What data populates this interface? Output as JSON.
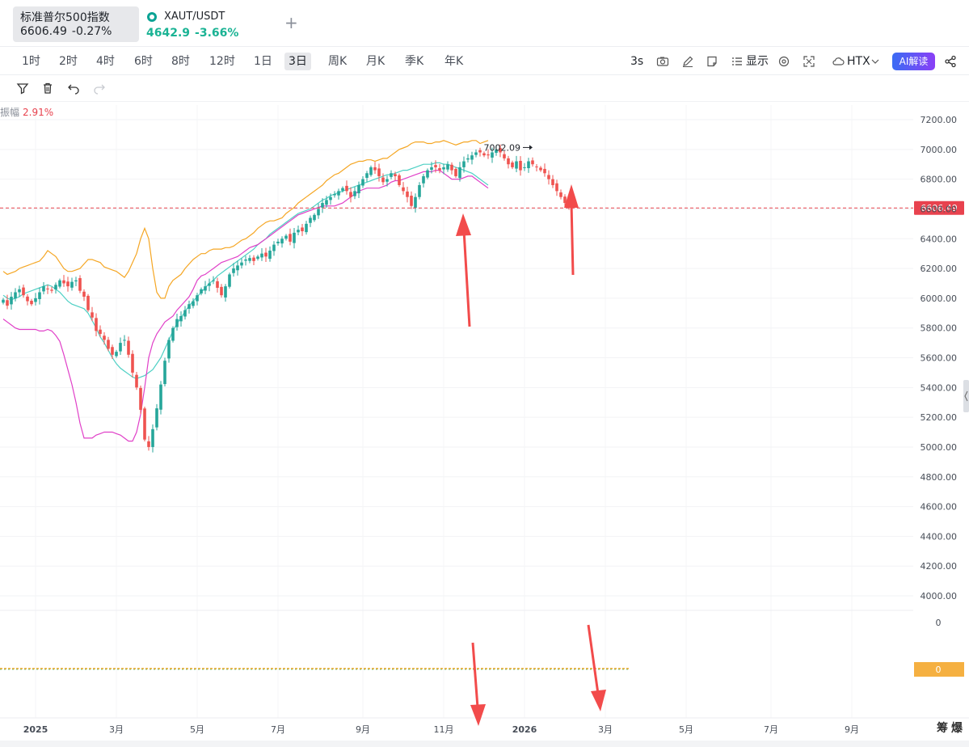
{
  "tabs": [
    {
      "name": "标准普尔500指数",
      "price": "6606.49",
      "change": "-0.27%"
    },
    {
      "name": "XAUT/USDT",
      "price": "4642.9",
      "change": "-3.66%"
    }
  ],
  "timeframes": [
    "1时",
    "2时",
    "4时",
    "6时",
    "8时",
    "12时",
    "1日",
    "3日",
    "周K",
    "月K",
    "季K",
    "年K"
  ],
  "active_timeframe": "3日",
  "toolbar": {
    "refresh_label": "3s",
    "display_label": "显示",
    "exchange_label": "HTX",
    "ai_label": "AI解读"
  },
  "legend": {
    "label": "振幅",
    "value": "2.91%"
  },
  "bottom_right_labels": [
    "筹",
    "爆"
  ],
  "colors": {
    "up": "#26a69a",
    "down": "#ef5350",
    "upper_band": "#f5a623",
    "mid_band": "#4dd0c4",
    "lower_band": "#e040c8",
    "price_line": "#e8424e",
    "arrow": "#f24b4b",
    "sub_marker": "#f5b041"
  },
  "chart_data": {
    "type": "candlestick",
    "title": "",
    "ylim": [
      3800,
      7300
    ],
    "yticks": [
      4000,
      4200,
      4400,
      4600,
      4800,
      5000,
      5200,
      5400,
      5600,
      5800,
      6000,
      6200,
      6400,
      6600,
      6800,
      7000,
      7200
    ],
    "y_tick_labels": [
      "4000.00",
      "4200.00",
      "4400.00",
      "4600.00",
      "4800.00",
      "5000.00",
      "5200.00",
      "5400.00",
      "5600.00",
      "5800.00",
      "6000.00",
      "6200.00",
      "6400.00",
      "6600.00",
      "6800.00",
      "7000.00",
      "7200.00"
    ],
    "x_labels": [
      {
        "label": "2025",
        "bold": true,
        "index": 0
      },
      {
        "label": "3月",
        "index": 20
      },
      {
        "label": "5月",
        "index": 40
      },
      {
        "label": "7月",
        "index": 60
      },
      {
        "label": "9月",
        "index": 81
      },
      {
        "label": "11月",
        "index": 101
      },
      {
        "label": "2026",
        "bold": true,
        "index": 121
      },
      {
        "label": "3月",
        "index": 141
      },
      {
        "label": "5月",
        "index": 161
      },
      {
        "label": "7月",
        "index": 182
      },
      {
        "label": "9月",
        "index": 202
      }
    ],
    "last_price": 6606.49,
    "last_price_label": "6606.49",
    "max_label": "7002.09",
    "max_index": 130,
    "max_value": 7002.09,
    "sub_indicator": {
      "labels": [
        "0",
        "0"
      ],
      "value": 0
    },
    "closes": [
      5990,
      5950,
      6010,
      6040,
      6060,
      6020,
      5980,
      5960,
      6000,
      6040,
      6080,
      6060,
      6050,
      6090,
      6120,
      6100,
      6080,
      6110,
      6120,
      6050,
      6010,
      5920,
      5870,
      5780,
      5760,
      5720,
      5660,
      5620,
      5640,
      5700,
      5720,
      5620,
      5500,
      5400,
      5250,
      5050,
      5000,
      5120,
      5260,
      5420,
      5580,
      5720,
      5800,
      5860,
      5880,
      5920,
      5960,
      5980,
      6020,
      6060,
      6080,
      6100,
      6120,
      6070,
      6020,
      6080,
      6160,
      6200,
      6220,
      6240,
      6260,
      6270,
      6250,
      6280,
      6300,
      6280,
      6320,
      6360,
      6380,
      6400,
      6420,
      6380,
      6440,
      6460,
      6450,
      6500,
      6540,
      6560,
      6600,
      6640,
      6660,
      6680,
      6700,
      6720,
      6740,
      6720,
      6680,
      6720,
      6760,
      6800,
      6840,
      6880,
      6860,
      6820,
      6780,
      6800,
      6840,
      6820,
      6760,
      6720,
      6680,
      6620,
      6680,
      6760,
      6820,
      6860,
      6880,
      6880,
      6860,
      6880,
      6900,
      6860,
      6820,
      6880,
      6920,
      6940,
      6960,
      6980,
      6980,
      6960,
      6960,
      6980,
      7000,
      6980,
      6940,
      6900,
      6880,
      6920,
      6860,
      6880,
      6920,
      6900,
      6880,
      6860,
      6840,
      6800,
      6760,
      6720,
      6680,
      6640,
      6606
    ],
    "bands": {
      "upper": [
        6180,
        6160,
        6170,
        6180,
        6200,
        6210,
        6220,
        6230,
        6240,
        6250,
        6280,
        6320,
        6300,
        6280,
        6240,
        6200,
        6180,
        6180,
        6190,
        6200,
        6230,
        6260,
        6260,
        6250,
        6240,
        6210,
        6200,
        6190,
        6180,
        6160,
        6140,
        6180,
        6240,
        6300,
        6400,
        6470,
        6400,
        6200,
        6040,
        6000,
        6000,
        6080,
        6120,
        6140,
        6160,
        6200,
        6230,
        6260,
        6280,
        6300,
        6300,
        6320,
        6330,
        6330,
        6330,
        6340,
        6340,
        6350,
        6370,
        6390,
        6400,
        6420,
        6440,
        6470,
        6490,
        6510,
        6520,
        6520,
        6530,
        6540,
        6570,
        6590,
        6610,
        6640,
        6660,
        6680,
        6700,
        6720,
        6740,
        6760,
        6790,
        6810,
        6830,
        6840,
        6860,
        6880,
        6900,
        6910,
        6920,
        6920,
        6930,
        6930,
        6920,
        6930,
        6940,
        6940,
        6960,
        6980,
        7000,
        7010,
        7020,
        7040,
        7050,
        7050,
        7050,
        7040,
        7040,
        7050,
        7050,
        7060,
        7050,
        7040,
        7030,
        7040,
        7050,
        7050,
        7060,
        7060,
        7040,
        7050,
        7060
      ],
      "mid": [
        6020,
        6000,
        5990,
        6000,
        6010,
        6030,
        6040,
        6050,
        6060,
        6070,
        6080,
        6090,
        6080,
        6060,
        6040,
        6010,
        5980,
        5960,
        5950,
        5940,
        5930,
        5900,
        5850,
        5800,
        5740,
        5700,
        5650,
        5600,
        5560,
        5530,
        5510,
        5490,
        5470,
        5460,
        5470,
        5480,
        5500,
        5520,
        5560,
        5600,
        5660,
        5720,
        5780,
        5830,
        5870,
        5910,
        5950,
        5980,
        6010,
        6040,
        6070,
        6100,
        6120,
        6150,
        6170,
        6190,
        6210,
        6230,
        6250,
        6270,
        6290,
        6310,
        6330,
        6360,
        6380,
        6400,
        6430,
        6450,
        6470,
        6490,
        6510,
        6530,
        6550,
        6570,
        6580,
        6590,
        6600,
        6620,
        6640,
        6660,
        6670,
        6690,
        6700,
        6710,
        6720,
        6730,
        6740,
        6750,
        6760,
        6770,
        6780,
        6790,
        6800,
        6810,
        6820,
        6830,
        6830,
        6840,
        6850,
        6860,
        6860,
        6870,
        6880,
        6890,
        6900,
        6900,
        6900,
        6910,
        6910,
        6900,
        6900,
        6890,
        6880,
        6870,
        6860,
        6850,
        6840,
        6820,
        6800,
        6780,
        6760
      ],
      "lower": [
        5860,
        5840,
        5820,
        5800,
        5790,
        5790,
        5790,
        5790,
        5790,
        5780,
        5780,
        5790,
        5780,
        5750,
        5710,
        5620,
        5520,
        5420,
        5300,
        5160,
        5060,
        5060,
        5060,
        5080,
        5090,
        5100,
        5100,
        5100,
        5090,
        5080,
        5060,
        5040,
        5040,
        5100,
        5220,
        5400,
        5600,
        5700,
        5760,
        5800,
        5840,
        5860,
        5880,
        5920,
        5950,
        5980,
        6010,
        6060,
        6120,
        6150,
        6160,
        6180,
        6200,
        6220,
        6240,
        6250,
        6260,
        6270,
        6280,
        6300,
        6320,
        6340,
        6350,
        6360,
        6380,
        6400,
        6420,
        6440,
        6460,
        6480,
        6500,
        6520,
        6540,
        6560,
        6570,
        6580,
        6590,
        6600,
        6610,
        6620,
        6620,
        6620,
        6620,
        6630,
        6640,
        6660,
        6680,
        6700,
        6720,
        6730,
        6740,
        6740,
        6740,
        6740,
        6750,
        6760,
        6780,
        6790,
        6790,
        6800,
        6810,
        6820,
        6830,
        6840,
        6850,
        6850,
        6850,
        6860,
        6860,
        6840,
        6820,
        6800,
        6800,
        6800,
        6810,
        6820,
        6820,
        6800,
        6780,
        6760,
        6740
      ]
    }
  }
}
